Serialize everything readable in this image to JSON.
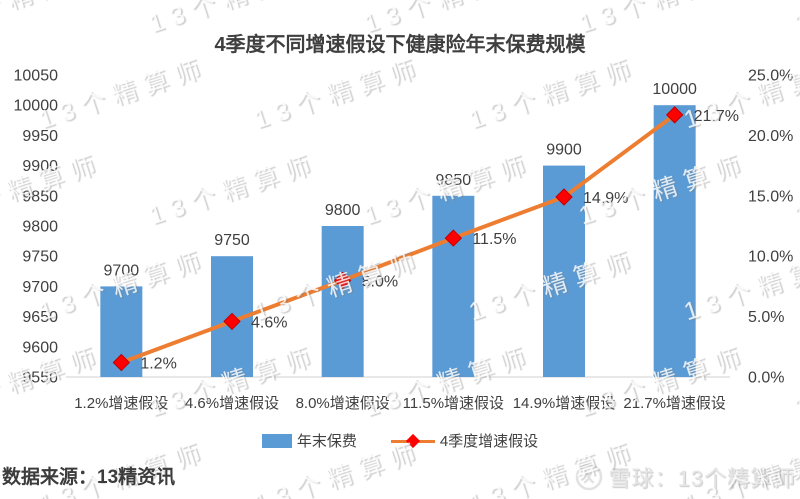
{
  "title": "4季度不同增速假设下健康险年末保费规模",
  "watermark": {
    "text": "13个精算师"
  },
  "chart_data": {
    "type": "bar",
    "subtype": "bar+line combo, dual axis",
    "categories": [
      "1.2%增速假设",
      "4.6%增速假设",
      "8.0%增速假设",
      "11.5%增速假设",
      "14.9%增速假设",
      "21.7%增速假设"
    ],
    "series": [
      {
        "name": "年末保费",
        "type": "bar",
        "axis": "left",
        "color": "#5B9BD5",
        "values": [
          9700,
          9750,
          9800,
          9850,
          9900,
          10000
        ],
        "labels": [
          "9700",
          "9750",
          "9800",
          "9850",
          "9900",
          "10000"
        ]
      },
      {
        "name": "4季度增速假设",
        "type": "line",
        "axis": "right",
        "color": "#ED7D31",
        "marker": "diamond",
        "marker_color": "#FF0000",
        "marker_edge": "#C00000",
        "values": [
          1.2,
          4.6,
          8.0,
          11.5,
          14.9,
          21.7
        ],
        "labels": [
          "1.2%",
          "4.6%",
          "8.0%",
          "11.5%",
          "14.9%",
          "21.7%"
        ]
      }
    ],
    "left_axis": {
      "min": 9550,
      "max": 10050,
      "step": 50,
      "ticks": [
        "10050",
        "10000",
        "9950",
        "9900",
        "9850",
        "9800",
        "9750",
        "9700",
        "9650",
        "9600",
        "9550"
      ]
    },
    "right_axis": {
      "min": 0,
      "max": 25,
      "step": 5,
      "ticks": [
        "25.0%",
        "20.0%",
        "15.0%",
        "10.0%",
        "5.0%",
        "0.0%"
      ]
    },
    "grid": false,
    "legend_position": "bottom",
    "axis_line_color": "#D9D9D9",
    "text_color": "#404040"
  },
  "footer": {
    "source": "数据来源：13精资讯",
    "brand": "雪球：13个精算师"
  }
}
